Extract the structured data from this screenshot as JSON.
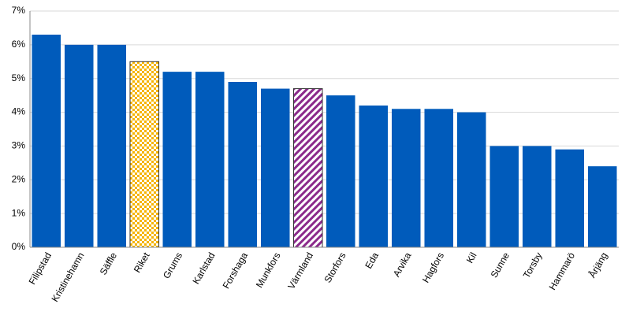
{
  "chart_data": {
    "type": "bar",
    "categories": [
      "Filipstad",
      "Kristinehamn",
      "Säffle",
      "Riket",
      "Grums",
      "Karlstad",
      "Forshaga",
      "Munkfors",
      "Värmland",
      "Storfors",
      "Eda",
      "Arvika",
      "Hagfors",
      "Kil",
      "Sunne",
      "Torsby",
      "Hammarö",
      "Årjäng"
    ],
    "values": [
      6.3,
      6.0,
      6.0,
      5.5,
      5.2,
      5.2,
      4.9,
      4.7,
      4.7,
      4.5,
      4.2,
      4.1,
      4.1,
      4.0,
      3.0,
      3.0,
      2.9,
      2.4
    ],
    "colors": [
      "#005bbb",
      "#005bbb",
      "#005bbb",
      "#f5b400",
      "#005bbb",
      "#005bbb",
      "#005bbb",
      "#005bbb",
      "#8b2a8b",
      "#005bbb",
      "#005bbb",
      "#005bbb",
      "#005bbb",
      "#005bbb",
      "#005bbb",
      "#005bbb",
      "#005bbb",
      "#005bbb"
    ],
    "patterns": [
      "solid",
      "solid",
      "solid",
      "checker",
      "solid",
      "solid",
      "solid",
      "solid",
      "hatch",
      "solid",
      "solid",
      "solid",
      "solid",
      "solid",
      "solid",
      "solid",
      "solid",
      "solid"
    ],
    "ylim": [
      0,
      7
    ],
    "yticks": [
      {
        "value": 0,
        "label": "0%"
      },
      {
        "value": 1,
        "label": "1%"
      },
      {
        "value": 2,
        "label": "2%"
      },
      {
        "value": 3,
        "label": "3%"
      },
      {
        "value": 4,
        "label": "4%"
      },
      {
        "value": 5,
        "label": "5%"
      },
      {
        "value": 6,
        "label": "6%"
      },
      {
        "value": 7,
        "label": "7%"
      }
    ],
    "grid": true
  }
}
